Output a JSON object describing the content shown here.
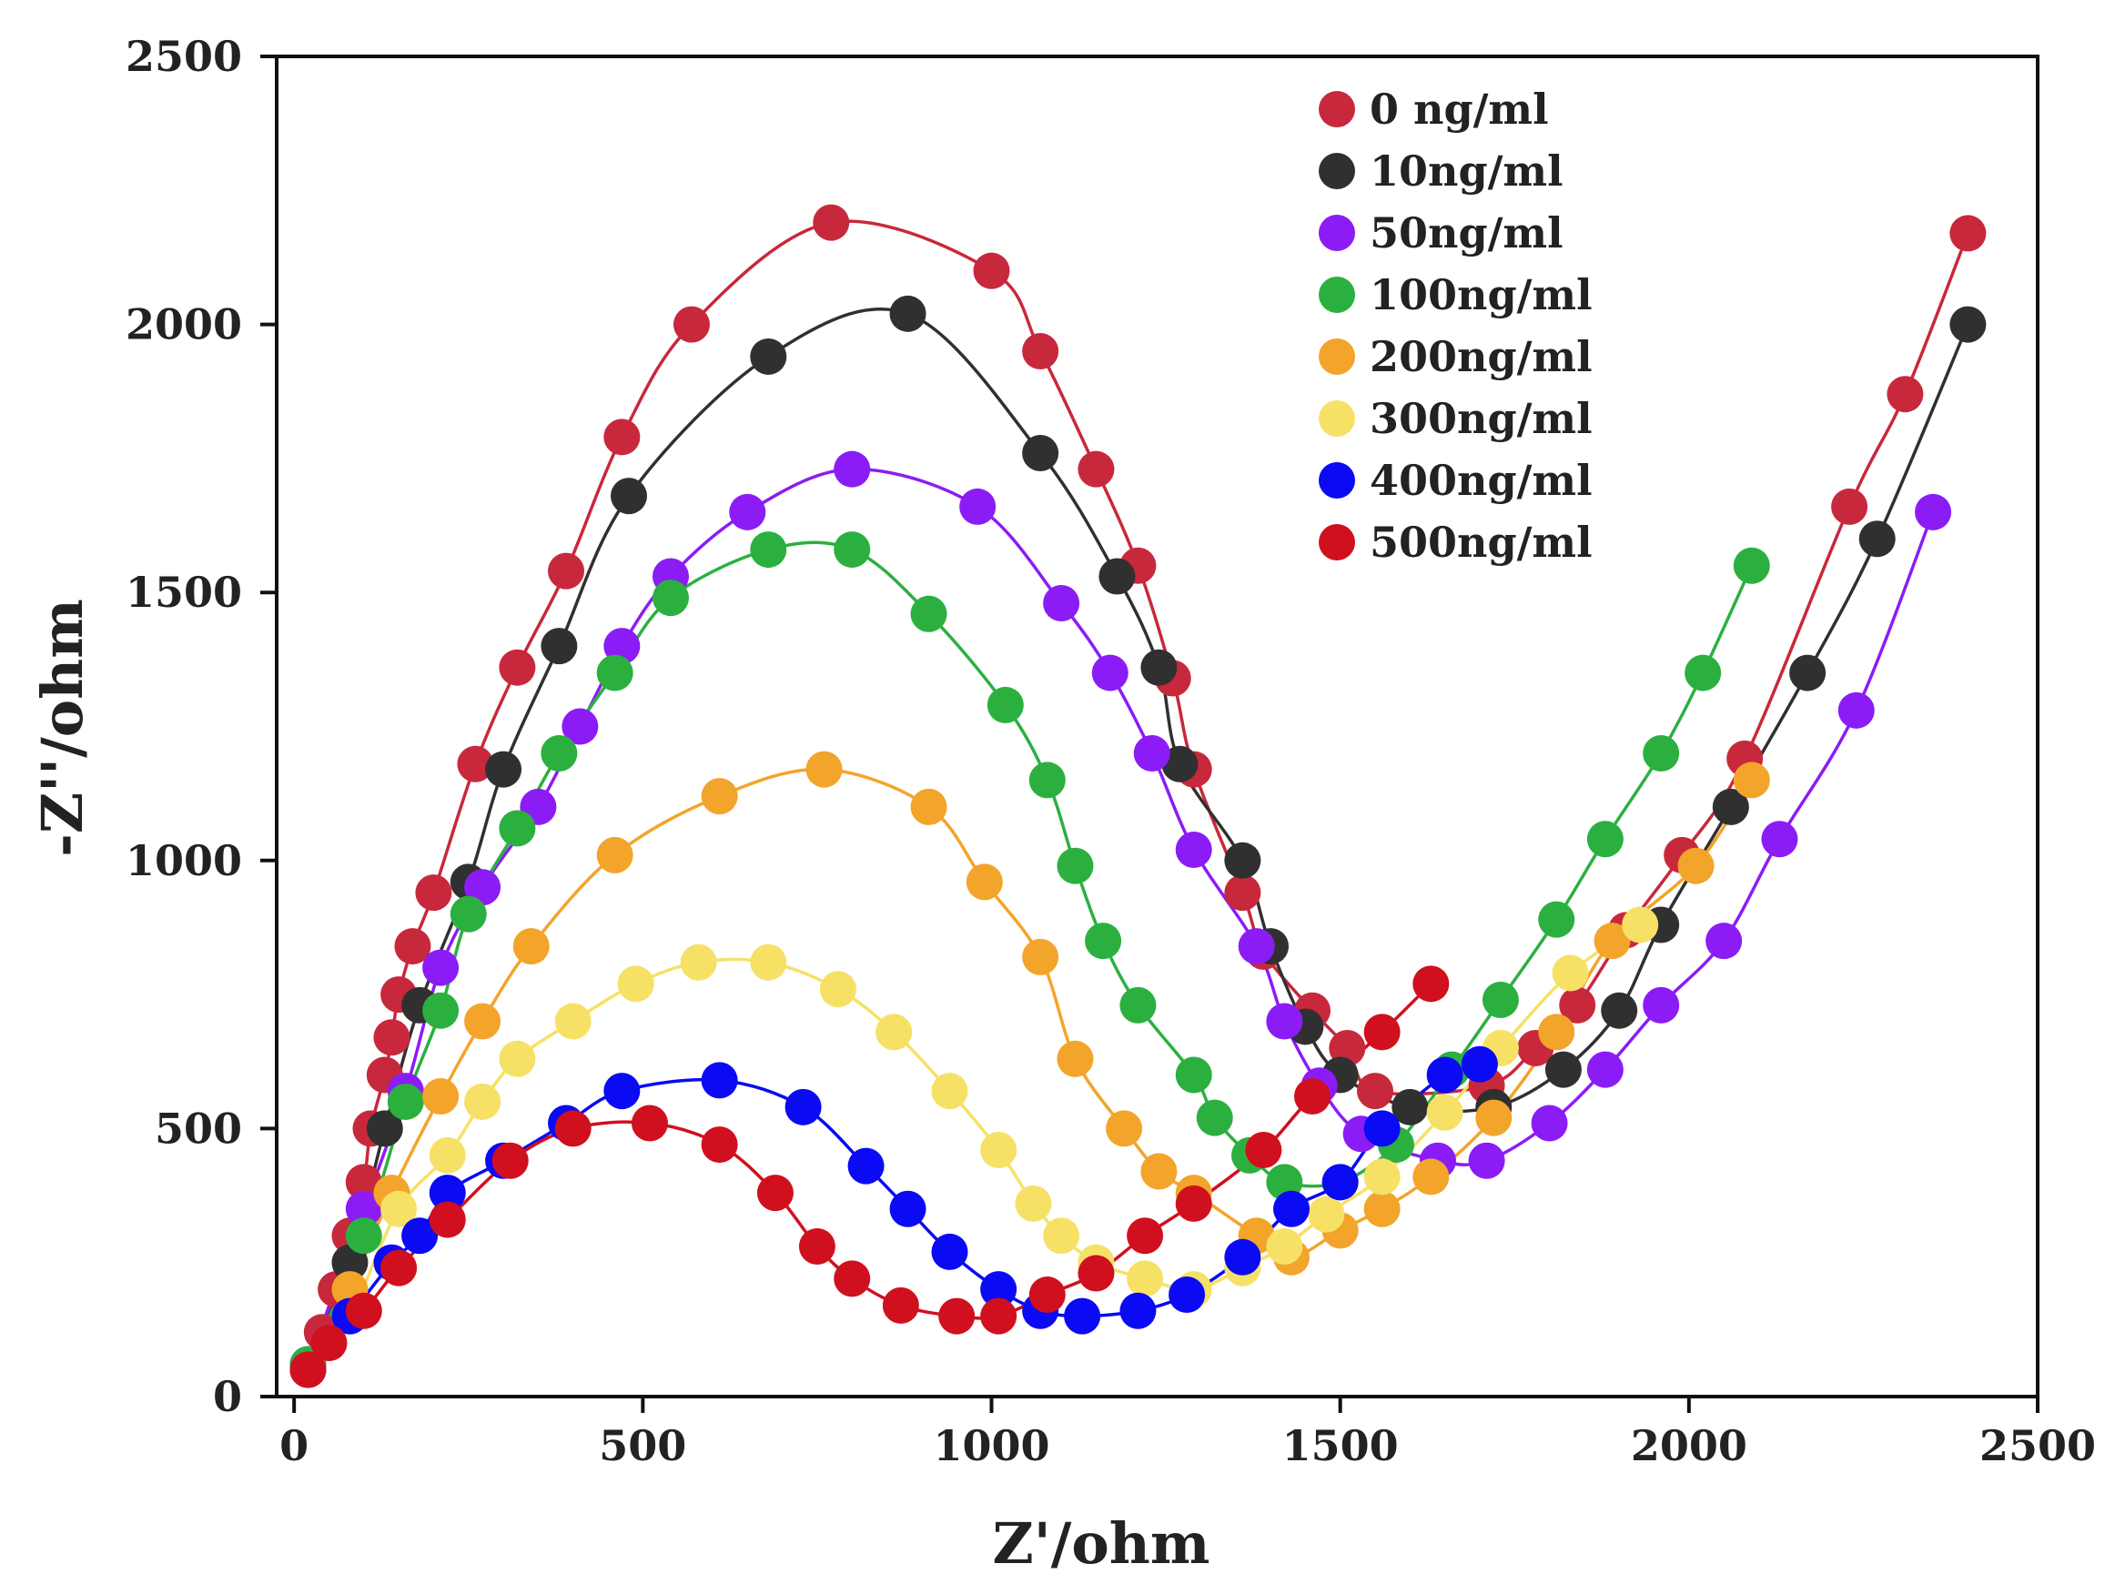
{
  "chart_data": {
    "type": "scatter",
    "title": "",
    "xlabel": "Z'/ohm",
    "ylabel": "-Z''/ohm",
    "xlim": [
      -25,
      2500
    ],
    "ylim": [
      0,
      2500
    ],
    "xticks": [
      "0",
      "500",
      "1000",
      "1500",
      "2000",
      "2500"
    ],
    "yticks": [
      "0",
      "500",
      "1000",
      "1500",
      "2000",
      "2500"
    ],
    "grid": false,
    "legend_position": "top-right",
    "series": [
      {
        "name": "0 ng/ml",
        "color": "#c8283c",
        "points": [
          [
            20,
            50
          ],
          [
            40,
            120
          ],
          [
            60,
            200
          ],
          [
            80,
            300
          ],
          [
            100,
            400
          ],
          [
            110,
            500
          ],
          [
            130,
            600
          ],
          [
            140,
            670
          ],
          [
            150,
            750
          ],
          [
            170,
            840
          ],
          [
            200,
            940
          ],
          [
            260,
            1180
          ],
          [
            320,
            1360
          ],
          [
            390,
            1540
          ],
          [
            470,
            1790
          ],
          [
            570,
            2000
          ],
          [
            770,
            2190
          ],
          [
            1000,
            2100
          ],
          [
            1070,
            1950
          ],
          [
            1150,
            1730
          ],
          [
            1210,
            1550
          ],
          [
            1260,
            1340
          ],
          [
            1290,
            1170
          ],
          [
            1360,
            940
          ],
          [
            1390,
            830
          ],
          [
            1460,
            720
          ],
          [
            1510,
            650
          ],
          [
            1550,
            570
          ],
          [
            1710,
            580
          ],
          [
            1780,
            650
          ],
          [
            1840,
            730
          ],
          [
            1910,
            870
          ],
          [
            1990,
            1010
          ],
          [
            2080,
            1190
          ],
          [
            2230,
            1660
          ],
          [
            2310,
            1870
          ],
          [
            2400,
            2170
          ]
        ]
      },
      {
        "name": "10ng/ml",
        "color": "#303030",
        "points": [
          [
            20,
            60
          ],
          [
            80,
            250
          ],
          [
            130,
            500
          ],
          [
            180,
            730
          ],
          [
            250,
            960
          ],
          [
            300,
            1170
          ],
          [
            380,
            1400
          ],
          [
            480,
            1680
          ],
          [
            680,
            1940
          ],
          [
            880,
            2020
          ],
          [
            1070,
            1760
          ],
          [
            1180,
            1530
          ],
          [
            1240,
            1360
          ],
          [
            1270,
            1180
          ],
          [
            1360,
            1000
          ],
          [
            1400,
            840
          ],
          [
            1450,
            690
          ],
          [
            1500,
            600
          ],
          [
            1600,
            540
          ],
          [
            1720,
            540
          ],
          [
            1820,
            610
          ],
          [
            1900,
            720
          ],
          [
            1960,
            880
          ],
          [
            2060,
            1100
          ],
          [
            2170,
            1350
          ],
          [
            2270,
            1600
          ],
          [
            2400,
            2000
          ]
        ]
      },
      {
        "name": "50ng/ml",
        "color": "#8b1cf5",
        "points": [
          [
            20,
            60
          ],
          [
            100,
            350
          ],
          [
            160,
            570
          ],
          [
            210,
            800
          ],
          [
            270,
            950
          ],
          [
            350,
            1100
          ],
          [
            410,
            1250
          ],
          [
            470,
            1400
          ],
          [
            540,
            1530
          ],
          [
            650,
            1650
          ],
          [
            800,
            1730
          ],
          [
            980,
            1660
          ],
          [
            1100,
            1480
          ],
          [
            1170,
            1350
          ],
          [
            1230,
            1200
          ],
          [
            1290,
            1020
          ],
          [
            1380,
            840
          ],
          [
            1420,
            700
          ],
          [
            1470,
            580
          ],
          [
            1530,
            490
          ],
          [
            1640,
            440
          ],
          [
            1710,
            440
          ],
          [
            1800,
            510
          ],
          [
            1880,
            610
          ],
          [
            1960,
            730
          ],
          [
            2050,
            850
          ],
          [
            2130,
            1040
          ],
          [
            2240,
            1280
          ],
          [
            2350,
            1650
          ]
        ]
      },
      {
        "name": "100ng/ml",
        "color": "#2bb040",
        "points": [
          [
            20,
            60
          ],
          [
            100,
            300
          ],
          [
            160,
            550
          ],
          [
            210,
            720
          ],
          [
            250,
            900
          ],
          [
            320,
            1060
          ],
          [
            380,
            1200
          ],
          [
            460,
            1350
          ],
          [
            540,
            1490
          ],
          [
            680,
            1580
          ],
          [
            800,
            1580
          ],
          [
            910,
            1460
          ],
          [
            1020,
            1290
          ],
          [
            1080,
            1150
          ],
          [
            1120,
            990
          ],
          [
            1160,
            850
          ],
          [
            1210,
            730
          ],
          [
            1290,
            600
          ],
          [
            1320,
            520
          ],
          [
            1370,
            450
          ],
          [
            1420,
            400
          ],
          [
            1500,
            400
          ],
          [
            1580,
            470
          ],
          [
            1660,
            610
          ],
          [
            1730,
            740
          ],
          [
            1810,
            890
          ],
          [
            1880,
            1040
          ],
          [
            1960,
            1200
          ],
          [
            2020,
            1350
          ],
          [
            2090,
            1550
          ]
        ]
      },
      {
        "name": "200ng/ml",
        "color": "#f3a42a",
        "points": [
          [
            20,
            50
          ],
          [
            80,
            200
          ],
          [
            140,
            380
          ],
          [
            210,
            560
          ],
          [
            270,
            700
          ],
          [
            340,
            840
          ],
          [
            460,
            1010
          ],
          [
            610,
            1120
          ],
          [
            760,
            1170
          ],
          [
            910,
            1100
          ],
          [
            990,
            960
          ],
          [
            1070,
            820
          ],
          [
            1120,
            630
          ],
          [
            1190,
            500
          ],
          [
            1240,
            420
          ],
          [
            1290,
            380
          ],
          [
            1380,
            300
          ],
          [
            1430,
            260
          ],
          [
            1500,
            310
          ],
          [
            1560,
            350
          ],
          [
            1630,
            410
          ],
          [
            1720,
            520
          ],
          [
            1810,
            680
          ],
          [
            1890,
            850
          ],
          [
            2010,
            990
          ],
          [
            2090,
            1150
          ]
        ]
      },
      {
        "name": "300ng/ml",
        "color": "#f6e166",
        "points": [
          [
            20,
            50
          ],
          [
            80,
            150
          ],
          [
            150,
            350
          ],
          [
            220,
            450
          ],
          [
            270,
            550
          ],
          [
            320,
            630
          ],
          [
            400,
            700
          ],
          [
            490,
            770
          ],
          [
            580,
            810
          ],
          [
            680,
            810
          ],
          [
            780,
            760
          ],
          [
            860,
            680
          ],
          [
            940,
            570
          ],
          [
            1010,
            460
          ],
          [
            1060,
            360
          ],
          [
            1100,
            300
          ],
          [
            1150,
            250
          ],
          [
            1220,
            220
          ],
          [
            1290,
            200
          ],
          [
            1360,
            240
          ],
          [
            1420,
            280
          ],
          [
            1480,
            340
          ],
          [
            1560,
            410
          ],
          [
            1650,
            530
          ],
          [
            1730,
            650
          ],
          [
            1830,
            790
          ],
          [
            1930,
            880
          ]
        ]
      },
      {
        "name": "400ng/ml",
        "color": "#0a0af5",
        "points": [
          [
            20,
            50
          ],
          [
            80,
            150
          ],
          [
            140,
            250
          ],
          [
            180,
            300
          ],
          [
            220,
            380
          ],
          [
            300,
            440
          ],
          [
            390,
            510
          ],
          [
            470,
            570
          ],
          [
            610,
            590
          ],
          [
            730,
            540
          ],
          [
            820,
            430
          ],
          [
            880,
            350
          ],
          [
            940,
            270
          ],
          [
            1010,
            200
          ],
          [
            1070,
            160
          ],
          [
            1130,
            150
          ],
          [
            1210,
            160
          ],
          [
            1280,
            190
          ],
          [
            1360,
            260
          ],
          [
            1430,
            350
          ],
          [
            1500,
            400
          ],
          [
            1560,
            500
          ],
          [
            1650,
            600
          ],
          [
            1700,
            620
          ]
        ]
      },
      {
        "name": "500ng/ml",
        "color": "#d0101e",
        "points": [
          [
            20,
            50
          ],
          [
            50,
            100
          ],
          [
            100,
            160
          ],
          [
            150,
            240
          ],
          [
            220,
            330
          ],
          [
            310,
            440
          ],
          [
            400,
            500
          ],
          [
            510,
            510
          ],
          [
            610,
            470
          ],
          [
            690,
            380
          ],
          [
            750,
            280
          ],
          [
            800,
            220
          ],
          [
            870,
            170
          ],
          [
            950,
            150
          ],
          [
            1010,
            150
          ],
          [
            1080,
            190
          ],
          [
            1150,
            230
          ],
          [
            1220,
            300
          ],
          [
            1290,
            360
          ],
          [
            1390,
            460
          ],
          [
            1460,
            560
          ],
          [
            1560,
            680
          ],
          [
            1630,
            770
          ]
        ]
      }
    ]
  }
}
